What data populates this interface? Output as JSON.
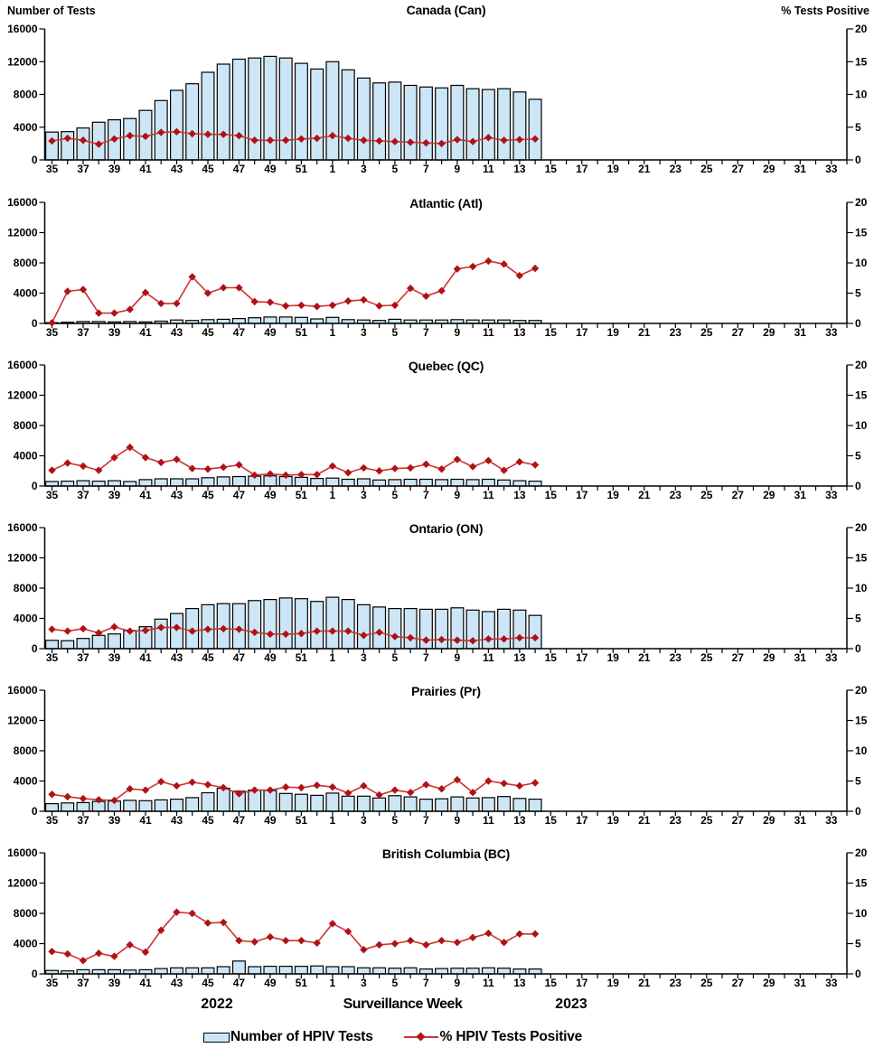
{
  "page": {
    "left_axis_label": "Number of Tests",
    "right_axis_label": "%  Tests Positive",
    "x_axis_label": "Surveillance Week",
    "year_left": "2022",
    "year_right": "2023",
    "legend": [
      {
        "label": "Number of HPIV Tests",
        "type": "bar"
      },
      {
        "label": "% HPIV Tests Positive",
        "type": "line"
      }
    ],
    "colors": {
      "bar_fill": "#cde6f7",
      "bar_stroke": "#000000",
      "line": "#cc3333",
      "marker": "#b01117",
      "axis": "#000000"
    }
  },
  "chart_meta": {
    "categories": [
      "35",
      "36",
      "37",
      "38",
      "39",
      "40",
      "41",
      "42",
      "43",
      "44",
      "45",
      "46",
      "47",
      "48",
      "49",
      "50",
      "51",
      "52",
      "1",
      "2",
      "3",
      "4",
      "5",
      "6",
      "7",
      "8",
      "9",
      "10",
      "11",
      "12",
      "13",
      "14",
      "15",
      "16",
      "17",
      "18",
      "19",
      "20",
      "21",
      "22",
      "23",
      "24",
      "25",
      "26",
      "27",
      "28",
      "29",
      "30",
      "31",
      "32",
      "33",
      "34"
    ],
    "x_ticklabel_every": 2,
    "data_weeks": 32,
    "ylim_left": [
      0,
      16000
    ],
    "ylim_right": [
      0,
      20
    ],
    "yticks_left": [
      0,
      4000,
      8000,
      12000,
      16000
    ],
    "yticks_right": [
      0,
      5,
      10,
      15,
      20
    ],
    "left_series_name": "Number of HPIV Tests",
    "right_series_name": "% HPIV Tests Positive"
  },
  "chart_data": [
    {
      "type": "bar-line-combo",
      "title": "Canada (Can)",
      "series": [
        {
          "name": "Number of HPIV Tests",
          "axis": "left",
          "values": [
            3400,
            3450,
            3900,
            4600,
            4900,
            5050,
            6050,
            7250,
            8500,
            9300,
            10700,
            11700,
            12300,
            12450,
            12650,
            12450,
            11800,
            11100,
            12000,
            11000,
            10000,
            9400,
            9500,
            9100,
            8900,
            8800,
            9100,
            8700,
            8600,
            8700,
            8300,
            7400
          ]
        },
        {
          "name": "% HPIV Tests Positive",
          "axis": "right",
          "values": [
            2.9,
            3.3,
            3.0,
            2.4,
            3.2,
            3.7,
            3.6,
            4.2,
            4.3,
            4.0,
            3.9,
            3.9,
            3.7,
            3.0,
            3.0,
            3.0,
            3.2,
            3.3,
            3.7,
            3.3,
            3.0,
            2.9,
            2.8,
            2.7,
            2.6,
            2.5,
            3.1,
            2.8,
            3.4,
            3.0,
            3.1,
            3.2
          ]
        }
      ]
    },
    {
      "type": "bar-line-combo",
      "title": "Atlantic (Atl)",
      "series": [
        {
          "name": "Number of HPIV Tests",
          "axis": "left",
          "values": [
            100,
            150,
            250,
            250,
            200,
            250,
            200,
            300,
            450,
            400,
            500,
            550,
            650,
            750,
            850,
            850,
            800,
            600,
            800,
            500,
            450,
            400,
            550,
            450,
            450,
            450,
            500,
            450,
            450,
            450,
            400,
            400
          ]
        },
        {
          "name": "% HPIV Tests Positive",
          "axis": "right",
          "values": [
            0.1,
            5.3,
            5.6,
            1.7,
            1.7,
            2.3,
            5.1,
            3.3,
            3.3,
            7.7,
            5.0,
            5.9,
            5.9,
            3.6,
            3.5,
            2.9,
            3.0,
            2.8,
            3.0,
            3.7,
            3.9,
            2.9,
            3.0,
            5.8,
            4.5,
            5.4,
            9.0,
            9.4,
            10.3,
            9.8,
            7.9,
            9.1
          ]
        }
      ]
    },
    {
      "type": "bar-line-combo",
      "title": "Quebec (QC)",
      "series": [
        {
          "name": "Number of HPIV Tests",
          "axis": "left",
          "values": [
            600,
            650,
            700,
            650,
            700,
            600,
            850,
            950,
            950,
            950,
            1100,
            1200,
            1250,
            1300,
            1350,
            1250,
            1150,
            1000,
            1050,
            900,
            950,
            800,
            850,
            900,
            900,
            850,
            900,
            850,
            900,
            800,
            700,
            650
          ]
        },
        {
          "name": "% HPIV Tests Positive",
          "axis": "right",
          "values": [
            2.6,
            3.8,
            3.3,
            2.6,
            4.7,
            6.4,
            4.7,
            3.9,
            4.4,
            2.9,
            2.8,
            3.1,
            3.5,
            1.8,
            2.0,
            1.8,
            1.9,
            1.9,
            3.3,
            2.2,
            3.0,
            2.5,
            2.9,
            3.0,
            3.6,
            2.8,
            4.4,
            3.2,
            4.2,
            2.6,
            4.0,
            3.5
          ]
        }
      ]
    },
    {
      "type": "bar-line-combo",
      "title": "Ontario (ON)",
      "series": [
        {
          "name": "Number of HPIV Tests",
          "axis": "left",
          "values": [
            1100,
            1050,
            1350,
            1750,
            1950,
            2400,
            2900,
            3900,
            4650,
            5300,
            5800,
            5950,
            5950,
            6350,
            6500,
            6700,
            6600,
            6250,
            6800,
            6500,
            5800,
            5500,
            5300,
            5300,
            5200,
            5200,
            5400,
            5100,
            4900,
            5200,
            5100,
            4400
          ]
        },
        {
          "name": "% HPIV Tests Positive",
          "axis": "right",
          "values": [
            3.2,
            2.9,
            3.3,
            2.6,
            3.6,
            2.9,
            3.0,
            3.5,
            3.5,
            2.9,
            3.2,
            3.3,
            3.2,
            2.7,
            2.4,
            2.4,
            2.5,
            2.9,
            2.9,
            2.9,
            2.2,
            2.7,
            2.0,
            1.8,
            1.4,
            1.5,
            1.4,
            1.3,
            1.6,
            1.6,
            1.8,
            1.8
          ]
        }
      ]
    },
    {
      "type": "bar-line-combo",
      "title": "Prairies (Pr)",
      "series": [
        {
          "name": "Number of HPIV Tests",
          "axis": "left",
          "values": [
            1000,
            1100,
            1150,
            1300,
            1350,
            1450,
            1400,
            1500,
            1600,
            1800,
            2450,
            3050,
            2650,
            2800,
            2750,
            2350,
            2250,
            2100,
            2400,
            2000,
            2000,
            1750,
            2050,
            1900,
            1600,
            1650,
            1900,
            1750,
            1800,
            1950,
            1700,
            1600
          ]
        },
        {
          "name": "% HPIV Tests Positive",
          "axis": "right",
          "values": [
            2.8,
            2.4,
            2.1,
            1.9,
            1.8,
            3.7,
            3.5,
            4.9,
            4.2,
            4.8,
            4.4,
            3.9,
            2.9,
            3.5,
            3.5,
            4.0,
            3.9,
            4.3,
            4.0,
            3.0,
            4.2,
            2.7,
            3.5,
            3.1,
            4.4,
            3.7,
            5.2,
            3.1,
            5.0,
            4.6,
            4.2,
            4.7
          ]
        }
      ]
    },
    {
      "type": "bar-line-combo",
      "title": "British Columbia (BC)",
      "series": [
        {
          "name": "Number of HPIV Tests",
          "axis": "left",
          "values": [
            450,
            400,
            550,
            550,
            550,
            500,
            550,
            700,
            800,
            800,
            800,
            950,
            1700,
            950,
            1000,
            1000,
            1000,
            1050,
            950,
            950,
            800,
            800,
            750,
            800,
            650,
            700,
            750,
            750,
            800,
            750,
            650,
            650
          ]
        },
        {
          "name": "% HPIV Tests Positive",
          "axis": "right",
          "values": [
            3.7,
            3.3,
            2.2,
            3.4,
            2.9,
            4.8,
            3.6,
            7.2,
            10.2,
            10.0,
            8.4,
            8.5,
            5.5,
            5.3,
            6.1,
            5.5,
            5.5,
            5.1,
            8.3,
            7.0,
            4.0,
            4.8,
            5.0,
            5.5,
            4.8,
            5.5,
            5.2,
            6.0,
            6.7,
            5.2,
            6.6,
            6.6
          ]
        }
      ]
    }
  ]
}
